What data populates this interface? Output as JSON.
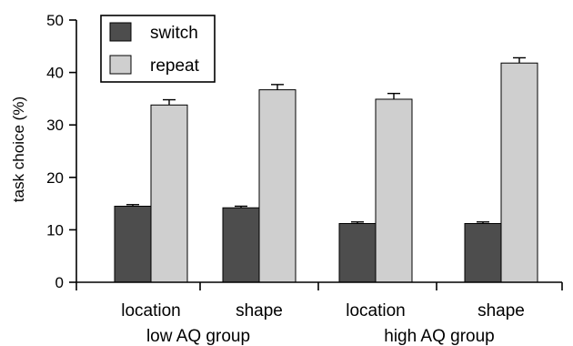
{
  "chart_data": {
    "type": "bar",
    "ylabel": "task choice (%)",
    "ylim": [
      0,
      50
    ],
    "yticks": [
      "0",
      "10",
      "20",
      "30",
      "40",
      "50"
    ],
    "categories": [
      "location",
      "shape",
      "location",
      "shape"
    ],
    "groups": [
      "low AQ group",
      "high AQ group"
    ],
    "series": [
      {
        "name": "switch",
        "color": "#4d4d4d",
        "values": [
          14.5,
          14.2,
          11.2,
          11.2
        ],
        "errors": [
          0.3,
          0.3,
          0.3,
          0.3
        ]
      },
      {
        "name": "repeat",
        "color": "#cfcfcf",
        "values": [
          33.8,
          36.7,
          34.9,
          41.8
        ],
        "errors": [
          1.0,
          1.0,
          1.1,
          1.0
        ]
      }
    ],
    "legend_position": "top-left",
    "grid": false
  }
}
